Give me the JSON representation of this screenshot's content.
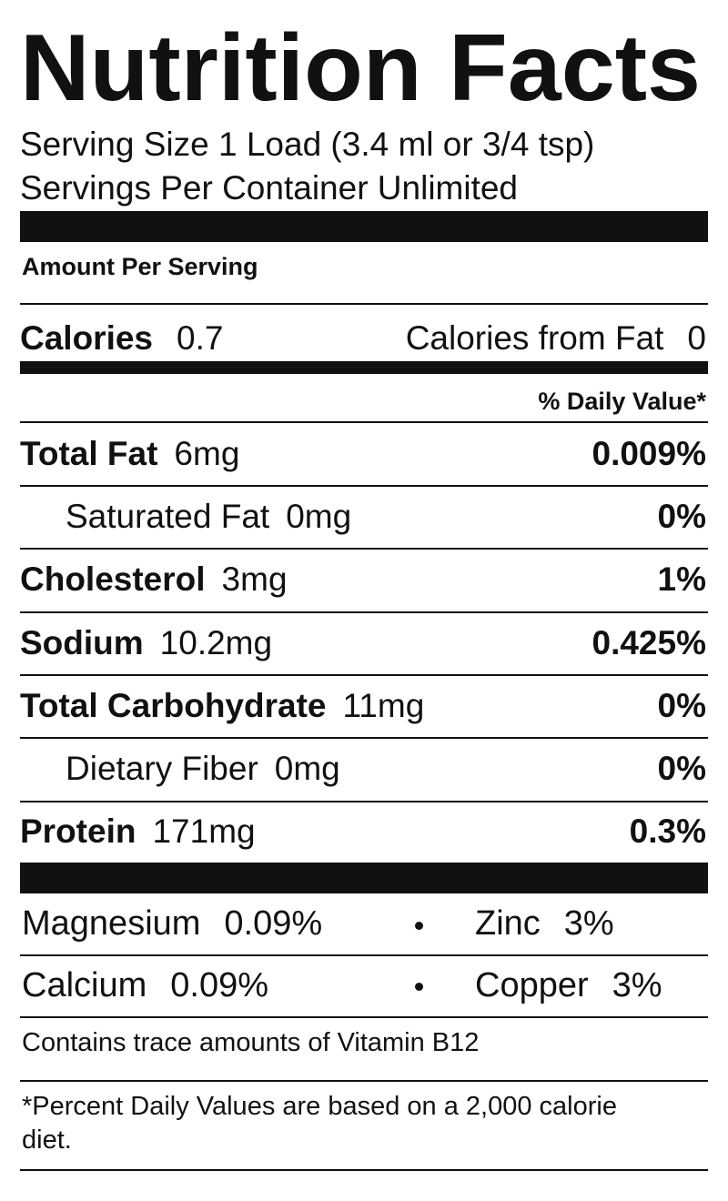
{
  "title": "Nutrition Facts",
  "serving_size": "Serving Size 1 Load (3.4 ml or 3/4 tsp)",
  "servings_per_container": "Servings Per Container Unlimited",
  "amount_per_serving": "Amount Per Serving",
  "calories": {
    "label": "Calories",
    "value": "0.7"
  },
  "calories_from_fat": {
    "label": "Calories from Fat",
    "value": "0"
  },
  "daily_value_header": "% Daily Value*",
  "nutrients": [
    {
      "label": "Total Fat",
      "amount": "6mg",
      "daily_value": "0.009%",
      "indent": false
    },
    {
      "label": "Saturated Fat",
      "amount": "0mg",
      "daily_value": "0%",
      "indent": true
    },
    {
      "label": "Cholesterol",
      "amount": "3mg",
      "daily_value": "1%",
      "indent": false
    },
    {
      "label": "Sodium",
      "amount": "10.2mg",
      "daily_value": "0.425%",
      "indent": false
    },
    {
      "label": "Total Carbohydrate",
      "amount": "11mg",
      "daily_value": "0%",
      "indent": false
    },
    {
      "label": "Dietary Fiber",
      "amount": "0mg",
      "daily_value": "0%",
      "indent": true
    },
    {
      "label": "Protein",
      "amount": "171mg",
      "daily_value": "0.3%",
      "indent": false
    }
  ],
  "minerals": [
    [
      {
        "label": "Magnesium",
        "value": "0.09%"
      },
      {
        "label": "Zinc",
        "value": "3%"
      }
    ],
    [
      {
        "label": "Calcium",
        "value": "0.09%"
      },
      {
        "label": "Copper",
        "value": "3%"
      }
    ]
  ],
  "note": "Contains trace amounts of Vitamin B12",
  "footnote": "*Percent Daily Values are based on a 2,000 calorie diet."
}
